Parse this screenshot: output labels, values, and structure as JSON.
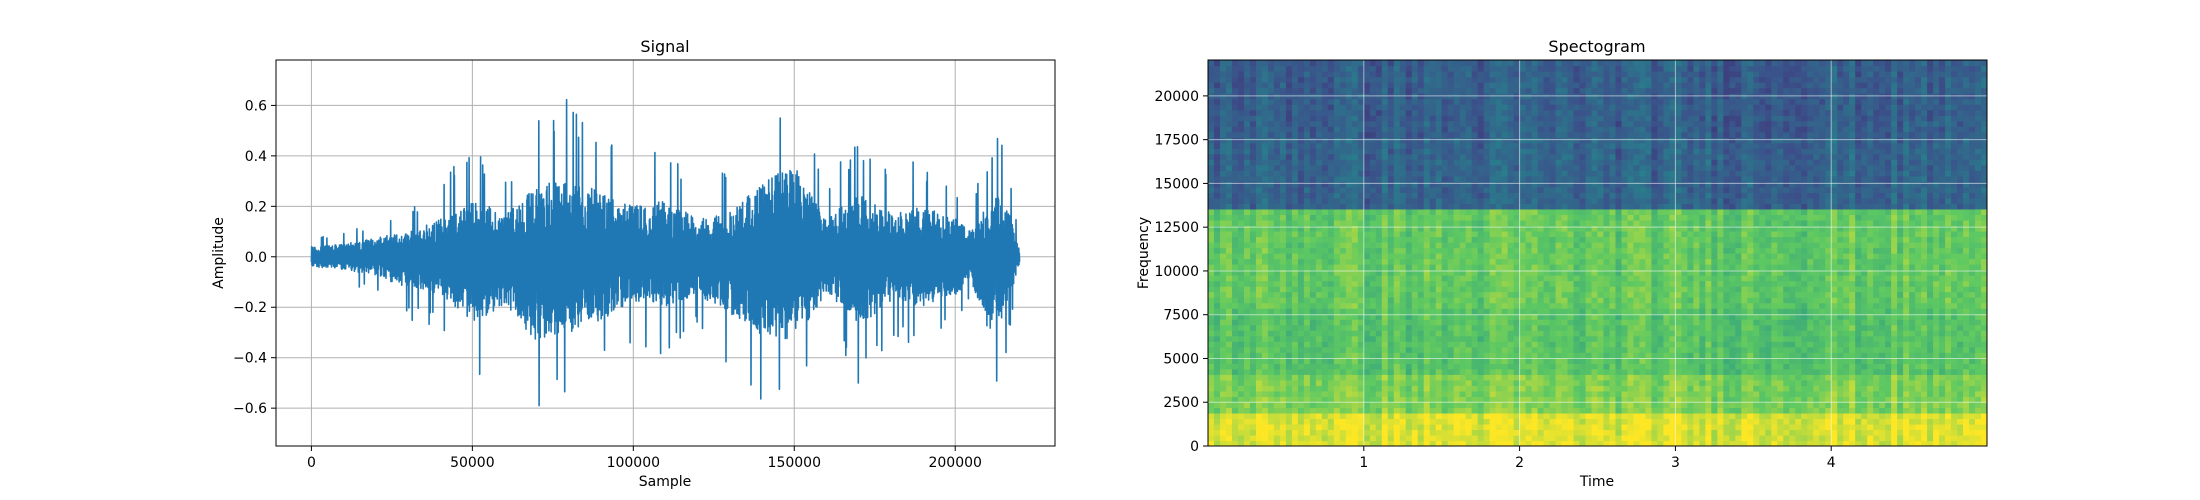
{
  "chart_data": [
    {
      "type": "line",
      "title": "Signal",
      "xlabel": "Sample",
      "ylabel": "Amplitude",
      "xlim": [
        -11000,
        231000
      ],
      "ylim": [
        -0.75,
        0.78
      ],
      "xticks": [
        0,
        50000,
        100000,
        150000,
        200000
      ],
      "xtick_labels": [
        "0",
        "50000",
        "100000",
        "150000",
        "200000"
      ],
      "yticks": [
        -0.6,
        -0.4,
        -0.2,
        0.0,
        0.2,
        0.4,
        0.6
      ],
      "ytick_labels": [
        "−0.6",
        "−0.4",
        "−0.2",
        "0.0",
        "0.2",
        "0.4",
        "0.6"
      ],
      "grid": true,
      "line_color": "#1f77b4",
      "series": [
        {
          "x": [
            0,
            10000,
            20000,
            30000,
            40000,
            50000,
            60000,
            70000,
            80000,
            90000,
            100000,
            110000,
            120000,
            130000,
            140000,
            150000,
            160000,
            170000,
            180000,
            190000,
            200000,
            205000,
            210000,
            215000,
            220000
          ],
          "envelope_upper": [
            0.08,
            0.1,
            0.15,
            0.2,
            0.3,
            0.45,
            0.35,
            0.55,
            0.65,
            0.5,
            0.4,
            0.45,
            0.3,
            0.35,
            0.6,
            0.72,
            0.3,
            0.5,
            0.35,
            0.4,
            0.3,
            0.2,
            0.42,
            0.5,
            0.05
          ],
          "envelope_lower": [
            -0.08,
            -0.1,
            -0.15,
            -0.25,
            -0.3,
            -0.52,
            -0.4,
            -0.68,
            -0.6,
            -0.5,
            -0.35,
            -0.4,
            -0.3,
            -0.45,
            -0.62,
            -0.66,
            -0.3,
            -0.55,
            -0.35,
            -0.4,
            -0.3,
            -0.2,
            -0.58,
            -0.5,
            -0.05
          ]
        }
      ]
    },
    {
      "type": "heatmap",
      "title": "Spectogram",
      "xlabel": "Time",
      "ylabel": "Frequency",
      "xlim": [
        0,
        5.0
      ],
      "ylim": [
        0,
        22050
      ],
      "xticks": [
        1,
        2,
        3,
        4
      ],
      "xtick_labels": [
        "1",
        "2",
        "3",
        "4"
      ],
      "yticks": [
        0,
        2500,
        5000,
        7500,
        10000,
        12500,
        15000,
        17500,
        20000
      ],
      "ytick_labels": [
        "0",
        "2500",
        "5000",
        "7500",
        "10000",
        "12500",
        "15000",
        "17500",
        "20000"
      ],
      "grid": true,
      "colormap": "viridis",
      "frequency_bands": [
        {
          "from": 0,
          "to": 1800,
          "intensity": 0.95
        },
        {
          "from": 1800,
          "to": 4000,
          "intensity": 0.8
        },
        {
          "from": 4000,
          "to": 8000,
          "intensity": 0.72
        },
        {
          "from": 8000,
          "to": 13500,
          "intensity": 0.75
        },
        {
          "from": 13500,
          "to": 17500,
          "intensity": 0.32
        },
        {
          "from": 17500,
          "to": 22050,
          "intensity": 0.3
        }
      ]
    }
  ]
}
